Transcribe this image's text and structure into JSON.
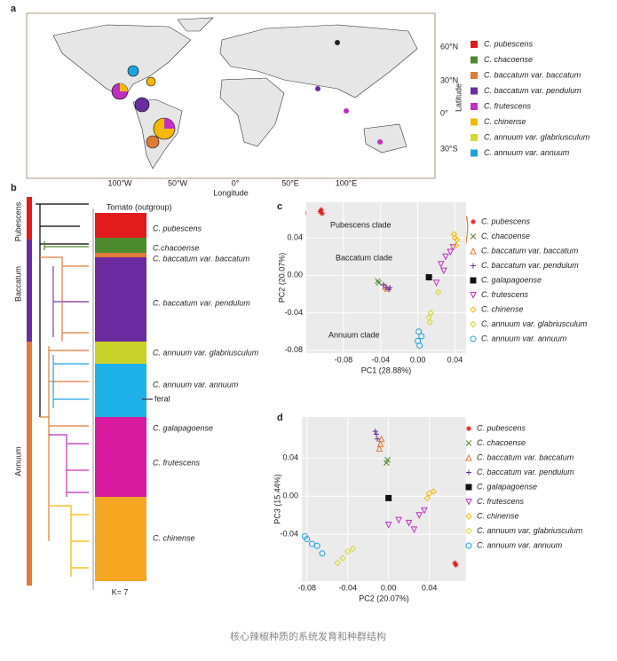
{
  "panels": {
    "a": {
      "label": "a",
      "legend": [
        {
          "name": "C. pubescens",
          "color": "#e31a1c"
        },
        {
          "name": "C. chacoense",
          "color": "#4d8a2d"
        },
        {
          "name": "C. baccatum var. baccatum",
          "color": "#e07b39"
        },
        {
          "name": "C. baccatum var. pendulum",
          "color": "#6a2c9e"
        },
        {
          "name": "C. frutescens",
          "color": "#c02fbf"
        },
        {
          "name": "C. chinense",
          "color": "#f5b800"
        },
        {
          "name": "C. annuum var. glabriusculum",
          "color": "#d6d62e"
        },
        {
          "name": "C. annuum var. annuum",
          "color": "#1ba3e0"
        }
      ],
      "lat_ticks": [
        "60°N",
        "30°N",
        "0°",
        "30°S"
      ],
      "lon_ticks": [
        "100°W",
        "50°W",
        "0°",
        "50°E",
        "100°E"
      ],
      "xlabel": "Longitude",
      "ylabel": "Latitude"
    },
    "b": {
      "label": "b",
      "groups": [
        "Pubescens",
        "Baccatum",
        "Annuum"
      ],
      "outgroup": "Tomato (outgroup)",
      "taxa": [
        "C. pubescens",
        "C.chacoense",
        "C. baccatum var. baccatum",
        "C. baccatum var. pendulum",
        "C. annuum var. glabriusculum",
        "C. annuum var. annuum",
        "C. galapagoense",
        "C. frutescens",
        "C. chinense"
      ],
      "feral": "feral",
      "k_label": "K= 7"
    }
  },
  "chart_data": [
    {
      "type": "scatter",
      "panel": "c",
      "xlabel": "PC1 (28.88%)",
      "ylabel": "PC2 (20.07%)",
      "xlim": [
        -0.12,
        0.052
      ],
      "ylim": [
        -0.083,
        0.078
      ],
      "xticks": [
        -0.08,
        -0.04,
        {
          "value": 0,
          "label": "0.00"
        },
        0.04
      ],
      "yticks": [
        0.04,
        {
          "value": 0,
          "label": "0.00"
        },
        -0.04,
        -0.08
      ],
      "annotations": [
        "Pubescens clade",
        "Baccatum clade",
        "Annuum clade"
      ],
      "series": [
        {
          "name": "C. pubescens",
          "color": "#e31a1c",
          "marker": "asterisk",
          "x": [
            -0.105,
            -0.103,
            -0.104
          ],
          "y": [
            0.068,
            0.066,
            0.07
          ]
        },
        {
          "name": "C. chacoense",
          "color": "#4d8a2d",
          "marker": "x",
          "x": [
            -0.043,
            -0.042
          ],
          "y": [
            -0.006,
            -0.008
          ]
        },
        {
          "name": "C. baccatum var. baccatum",
          "color": "#e07b39",
          "marker": "triangle",
          "x": [
            -0.035,
            -0.033
          ],
          "y": [
            -0.012,
            -0.014
          ]
        },
        {
          "name": "C. baccatum var. pendulum",
          "color": "#6a2c9e",
          "marker": "plus",
          "x": [
            -0.037,
            -0.034,
            -0.031,
            -0.03
          ],
          "y": [
            -0.01,
            -0.013,
            -0.015,
            -0.013
          ]
        },
        {
          "name": "C. galapagoense",
          "color": "#111111",
          "marker": "square",
          "x": [
            0.012
          ],
          "y": [
            -0.002
          ]
        },
        {
          "name": "C. frutescens",
          "color": "#c02fbf",
          "marker": "triangle-down",
          "x": [
            0.03,
            0.035,
            0.038,
            0.025,
            0.02,
            0.028
          ],
          "y": [
            0.02,
            0.025,
            0.03,
            0.012,
            -0.008,
            0.005
          ]
        },
        {
          "name": "C. chinense",
          "color": "#f5b800",
          "marker": "diamond",
          "x": [
            0.04,
            0.042,
            0.041,
            0.039
          ],
          "y": [
            0.04,
            0.038,
            0.032,
            0.044
          ]
        },
        {
          "name": "C. annuum var. glabriusculum",
          "color": "#d6d62e",
          "marker": "diamond",
          "x": [
            0.012,
            0.013,
            0.014,
            0.022
          ],
          "y": [
            -0.045,
            -0.05,
            -0.04,
            -0.018
          ]
        },
        {
          "name": "C. annuum var. annuum",
          "color": "#1ba3e0",
          "marker": "circle",
          "x": [
            0,
            0.002,
            0.004,
            0.001
          ],
          "y": [
            -0.07,
            -0.075,
            -0.065,
            -0.06
          ]
        }
      ]
    },
    {
      "type": "scatter",
      "panel": "d",
      "xlabel": "PC2 (20.07%)",
      "ylabel": "PC3 (15.44%)",
      "xlim": [
        -0.085,
        0.076
      ],
      "ylim": [
        -0.089,
        0.083
      ],
      "xticks": [
        -0.08,
        -0.04,
        {
          "value": 0,
          "label": "0.00"
        },
        0.04
      ],
      "yticks": [
        0.04,
        {
          "value": 0,
          "label": "0.00"
        },
        -0.04
      ],
      "series": [
        {
          "name": "C. pubescens",
          "color": "#e31a1c",
          "marker": "asterisk",
          "x": [
            0.066,
            0.065
          ],
          "y": [
            -0.072,
            -0.07
          ]
        },
        {
          "name": "C. chacoense",
          "color": "#4d8a2d",
          "marker": "x",
          "x": [
            -0.002,
            -0.001
          ],
          "y": [
            0.035,
            0.038
          ]
        },
        {
          "name": "C. baccatum var. baccatum",
          "color": "#e07b39",
          "marker": "triangle",
          "x": [
            -0.008,
            -0.007,
            -0.009
          ],
          "y": [
            0.055,
            0.06,
            0.05
          ]
        },
        {
          "name": "C. baccatum var. pendulum",
          "color": "#6a2c9e",
          "marker": "plus",
          "x": [
            -0.012,
            -0.013,
            -0.011
          ],
          "y": [
            0.065,
            0.068,
            0.06
          ]
        },
        {
          "name": "C. galapagoense",
          "color": "#111111",
          "marker": "square",
          "x": [
            0
          ],
          "y": [
            -0.002
          ]
        },
        {
          "name": "C. frutescens",
          "color": "#c02fbf",
          "marker": "triangle-down",
          "x": [
            0,
            0.01,
            0.02,
            0.03,
            0.025,
            0.035
          ],
          "y": [
            -0.03,
            -0.025,
            -0.028,
            -0.02,
            -0.035,
            -0.015
          ]
        },
        {
          "name": "C. chinense",
          "color": "#f5b800",
          "marker": "diamond",
          "x": [
            0.04,
            0.038,
            0.044
          ],
          "y": [
            0.003,
            -0.002,
            0.005
          ]
        },
        {
          "name": "C. annuum var. glabriusculum",
          "color": "#d6d62e",
          "marker": "diamond",
          "x": [
            -0.045,
            -0.04,
            -0.05,
            -0.035
          ],
          "y": [
            -0.065,
            -0.058,
            -0.07,
            -0.055
          ]
        },
        {
          "name": "C. annuum var. annuum",
          "color": "#1ba3e0",
          "marker": "circle",
          "x": [
            -0.08,
            -0.075,
            -0.07,
            -0.082,
            -0.065
          ],
          "y": [
            -0.045,
            -0.05,
            -0.052,
            -0.042,
            -0.06
          ]
        }
      ]
    }
  ],
  "caption": "核心辣椒种质的系统发育和种群结构"
}
